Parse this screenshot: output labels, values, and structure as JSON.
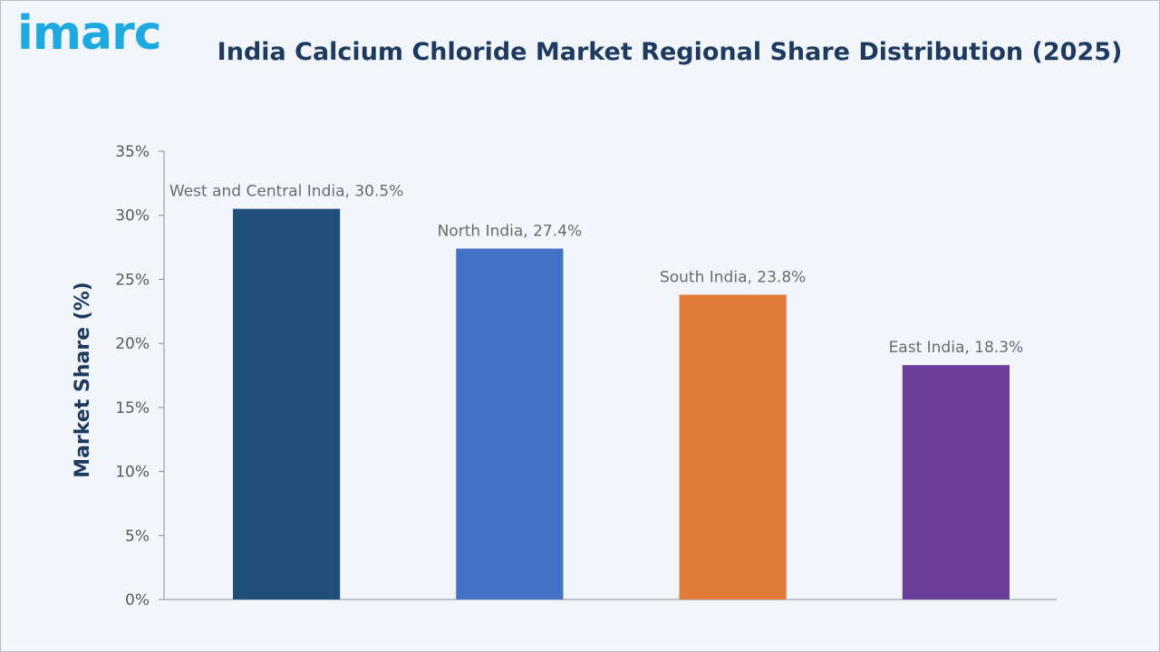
{
  "brand": {
    "logo_text": "imarc",
    "logo_color": "#1fa9e1"
  },
  "chart_data": {
    "type": "bar",
    "title": "India Calcium Chloride Market Regional Share Distribution (2025)",
    "xlabel": "",
    "ylabel": "Market Share (%)",
    "ylim": [
      0,
      35
    ],
    "yticks": [
      0,
      5,
      10,
      15,
      20,
      25,
      30,
      35
    ],
    "ytick_labels": [
      "0%",
      "5%",
      "10%",
      "15%",
      "20%",
      "25%",
      "30%",
      "35%"
    ],
    "grid": false,
    "legend": "none",
    "categories": [
      "West and Central India",
      "North India",
      "South India",
      "East India"
    ],
    "values": [
      30.5,
      27.4,
      23.8,
      18.3
    ],
    "data_labels": [
      "West and Central India, 30.5%",
      "North India, 27.4%",
      "South India, 23.8%",
      "East India, 18.3%"
    ],
    "colors": [
      "#1f4e79",
      "#4472c4",
      "#e07b39",
      "#6a3d9a"
    ]
  }
}
